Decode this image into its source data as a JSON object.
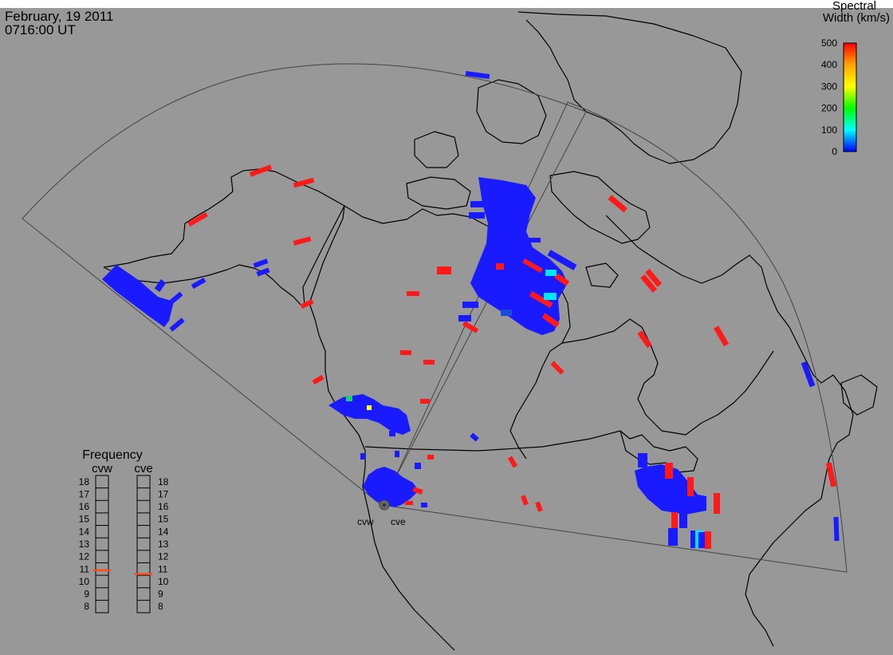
{
  "header": {
    "date": "February, 19 2011",
    "time": "0716:00 UT"
  },
  "colorbar": {
    "title_line1": "Spectral",
    "title_line2": "Width (km/s)",
    "ticks": [
      "500",
      "400",
      "300",
      "200",
      "100",
      "0"
    ],
    "range": [
      0,
      500
    ],
    "colors": [
      "#0000ff",
      "#00ffff",
      "#00ff00",
      "#ffff00",
      "#ffa500",
      "#ff0000"
    ]
  },
  "frequency": {
    "title": "Frequency",
    "radars": [
      {
        "name": "cvw",
        "value_mhz": 10.9
      },
      {
        "name": "cve",
        "value_mhz": 10.6
      }
    ],
    "ticks": [
      "18",
      "17",
      "16",
      "15",
      "14",
      "13",
      "12",
      "11",
      "10",
      "9",
      "8"
    ],
    "range": [
      8,
      18
    ],
    "marker_color": "#ff4a1a"
  },
  "sites": [
    {
      "name": "cvw"
    },
    {
      "name": "cve"
    }
  ],
  "style": {
    "background": "#989898",
    "map_background": "#989898",
    "coast_color": "#000000",
    "fov_color": "#444444",
    "scatter_blue": "#1a1aff",
    "scatter_red": "#ff1a1a",
    "scatter_cyan": "#00e5ff",
    "scatter_yellow": "#ffff33",
    "scatter_green": "#22cc66"
  }
}
